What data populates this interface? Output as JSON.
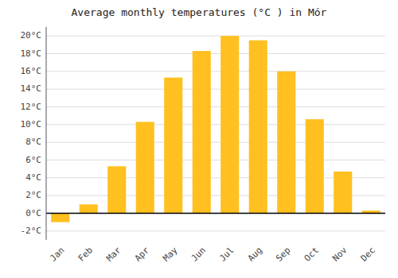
{
  "chart_data": {
    "type": "bar",
    "title": "Average monthly temperatures (°C ) in Mór",
    "categories": [
      "Jan",
      "Feb",
      "Mar",
      "Apr",
      "May",
      "Jun",
      "Jul",
      "Aug",
      "Sep",
      "Oct",
      "Nov",
      "Dec"
    ],
    "values": [
      -1.0,
      1.0,
      5.3,
      10.3,
      15.3,
      18.3,
      20.0,
      19.5,
      16.0,
      10.6,
      4.7,
      0.3
    ],
    "color": "#FFC020",
    "ylim": [
      -3,
      21
    ],
    "yticks": [
      {
        "value": -2,
        "label": "-2°C"
      },
      {
        "value": 0,
        "label": "0°C"
      },
      {
        "value": 2,
        "label": "2°C"
      },
      {
        "value": 4,
        "label": "4°C"
      },
      {
        "value": 6,
        "label": "6°C"
      },
      {
        "value": 8,
        "label": "8°C"
      },
      {
        "value": 10,
        "label": "10°C"
      },
      {
        "value": 12,
        "label": "12°C"
      },
      {
        "value": 14,
        "label": "14°C"
      },
      {
        "value": 16,
        "label": "16°C"
      },
      {
        "value": 18,
        "label": "18°C"
      },
      {
        "value": 20,
        "label": "20°C"
      }
    ],
    "grid": true
  }
}
